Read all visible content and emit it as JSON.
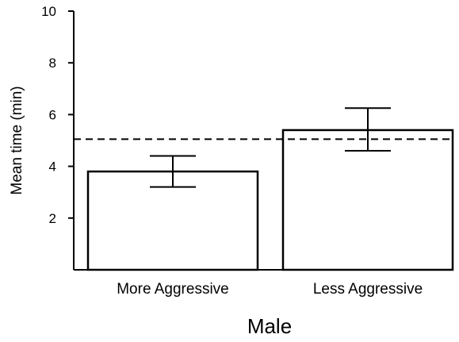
{
  "chart_data": {
    "type": "bar",
    "categories": [
      "More Aggressive",
      "Less Aggressive"
    ],
    "values": [
      3.8,
      5.4
    ],
    "error_high": [
      4.4,
      6.25
    ],
    "error_low": [
      3.2,
      4.6
    ],
    "reference_line": 5.05,
    "ylim": [
      0,
      10
    ],
    "yticks": [
      "2",
      "4",
      "6",
      "8",
      "10"
    ],
    "xlabel": "Male",
    "ylabel": "Mean time (min)",
    "title": "",
    "grid": false,
    "legend": "none"
  }
}
